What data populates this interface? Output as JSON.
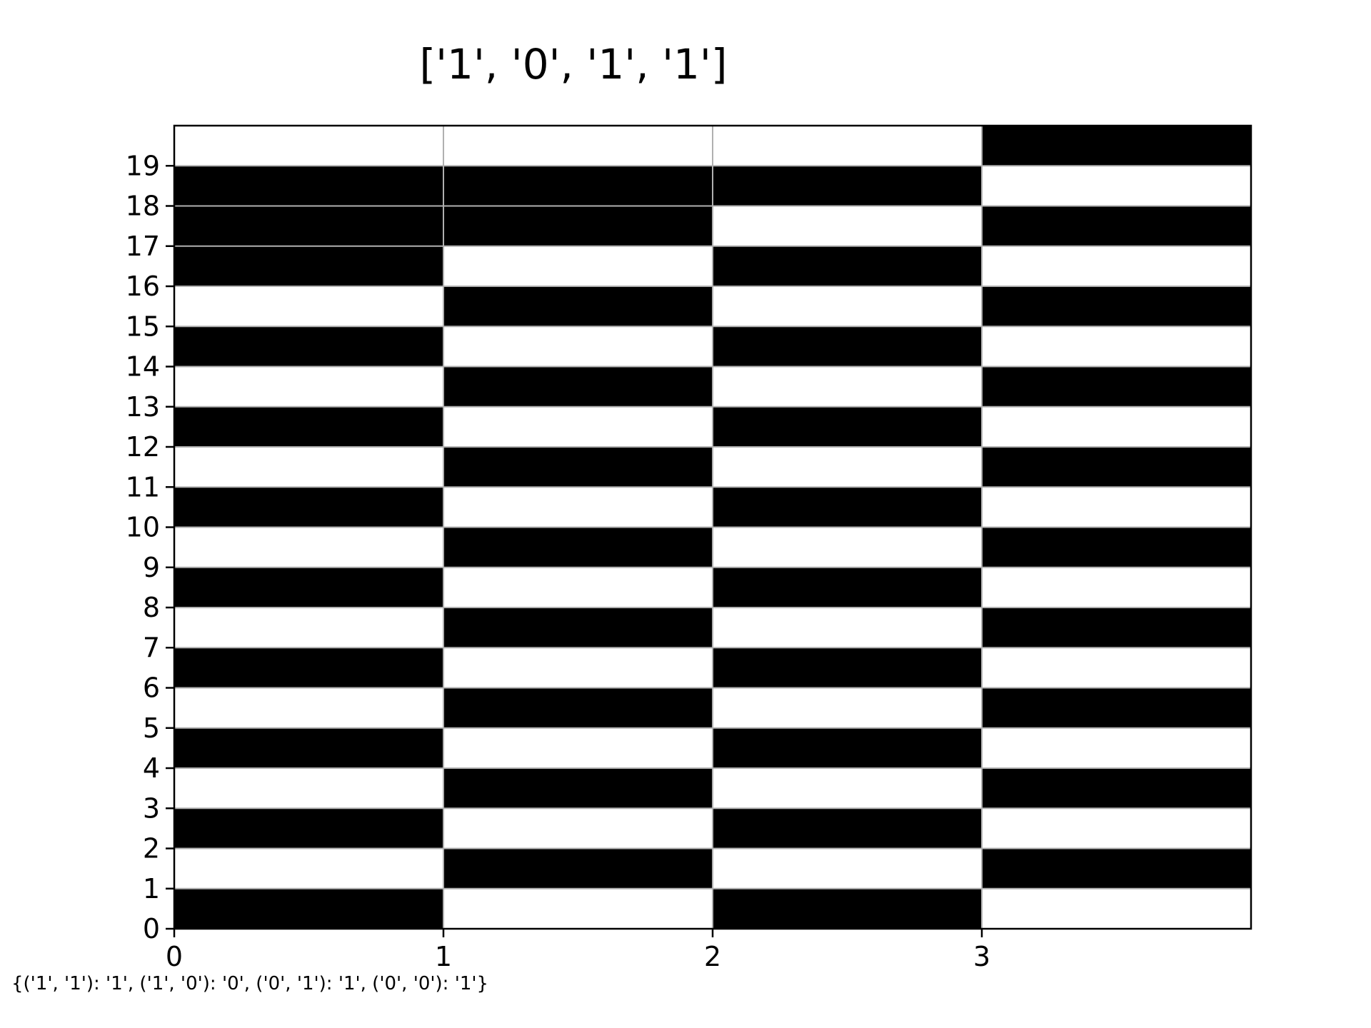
{
  "chart_data": {
    "type": "heatmap",
    "title": "['1', '0', '1', '1']",
    "footer_text": "{('1', '1'): '1', ('1', '0'): '0', ('0', '1'): '1', ('0', '0'): '1'}",
    "xlabel": "",
    "ylabel": "",
    "x_ticks": [
      "0",
      "1",
      "2",
      "3"
    ],
    "y_ticks": [
      "0",
      "1",
      "2",
      "3",
      "4",
      "5",
      "6",
      "7",
      "8",
      "9",
      "10",
      "11",
      "12",
      "13",
      "14",
      "15",
      "16",
      "17",
      "18",
      "19"
    ],
    "xlim": [
      0,
      4
    ],
    "ylim": [
      0,
      20
    ],
    "grid": true,
    "colors": {
      "one": "#000000",
      "zero": "#ffffff",
      "grid": "#b0b0b0",
      "axes": "#000000"
    },
    "columns": [
      "0",
      "1",
      "2",
      "3"
    ],
    "rows": [
      {
        "row": 0,
        "values": [
          1,
          0,
          1,
          0
        ]
      },
      {
        "row": 1,
        "values": [
          0,
          1,
          0,
          1
        ]
      },
      {
        "row": 2,
        "values": [
          1,
          0,
          1,
          0
        ]
      },
      {
        "row": 3,
        "values": [
          0,
          1,
          0,
          1
        ]
      },
      {
        "row": 4,
        "values": [
          1,
          0,
          1,
          0
        ]
      },
      {
        "row": 5,
        "values": [
          0,
          1,
          0,
          1
        ]
      },
      {
        "row": 6,
        "values": [
          1,
          0,
          1,
          0
        ]
      },
      {
        "row": 7,
        "values": [
          0,
          1,
          0,
          1
        ]
      },
      {
        "row": 8,
        "values": [
          1,
          0,
          1,
          0
        ]
      },
      {
        "row": 9,
        "values": [
          0,
          1,
          0,
          1
        ]
      },
      {
        "row": 10,
        "values": [
          1,
          0,
          1,
          0
        ]
      },
      {
        "row": 11,
        "values": [
          0,
          1,
          0,
          1
        ]
      },
      {
        "row": 12,
        "values": [
          1,
          0,
          1,
          0
        ]
      },
      {
        "row": 13,
        "values": [
          0,
          1,
          0,
          1
        ]
      },
      {
        "row": 14,
        "values": [
          1,
          0,
          1,
          0
        ]
      },
      {
        "row": 15,
        "values": [
          0,
          1,
          0,
          1
        ]
      },
      {
        "row": 16,
        "values": [
          1,
          0,
          1,
          0
        ]
      },
      {
        "row": 17,
        "values": [
          1,
          1,
          0,
          1
        ]
      },
      {
        "row": 18,
        "values": [
          1,
          1,
          1,
          0
        ]
      },
      {
        "row": 19,
        "values": [
          0,
          0,
          0,
          1
        ]
      }
    ]
  }
}
